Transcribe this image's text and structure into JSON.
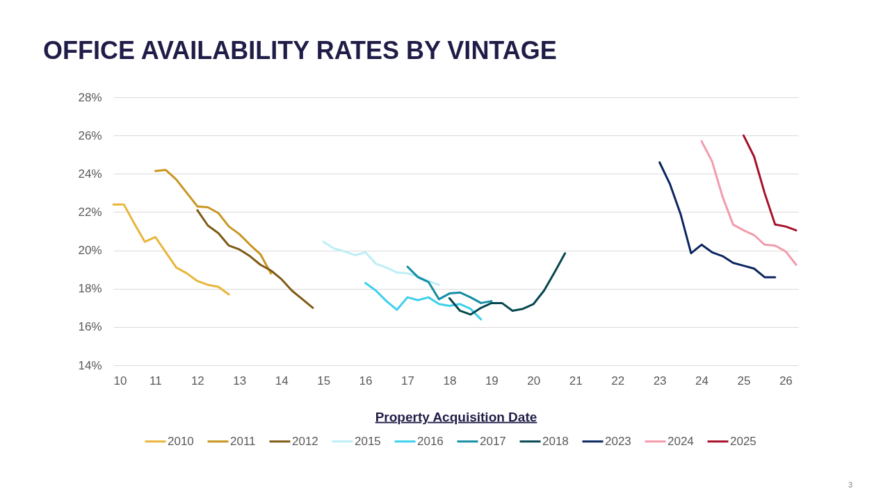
{
  "chart_data": {
    "type": "line",
    "title": "OFFICE AVAILABILITY RATES BY VINTAGE",
    "xlabel": "Property Acquisition Date",
    "annotations": [
      "3"
    ],
    "xlim": [
      10,
      26.3
    ],
    "xticks": [
      10,
      11,
      12,
      13,
      14,
      15,
      16,
      17,
      18,
      19,
      20,
      21,
      22,
      23,
      24,
      25,
      26
    ],
    "ylim": [
      14,
      28
    ],
    "yticks": [
      {
        "value": 14,
        "label": "14%"
      },
      {
        "value": 16,
        "label": "16%"
      },
      {
        "value": 18,
        "label": "18%"
      },
      {
        "value": 20,
        "label": "20%"
      },
      {
        "value": 22,
        "label": "22%"
      },
      {
        "value": 24,
        "label": "24%"
      },
      {
        "value": 26,
        "label": "26%"
      },
      {
        "value": 28,
        "label": "28%"
      }
    ],
    "grid": "y",
    "legend": "bottom",
    "line_style": "solid",
    "series": [
      {
        "name": "2010",
        "color": "#e8b63a",
        "x": [
          10,
          10.25,
          10.5,
          10.75,
          11,
          11.25,
          11.5,
          11.75,
          12,
          12.25,
          12.5,
          12.75
        ],
        "values": [
          22.4,
          22.4,
          21.4,
          20.45,
          20.7,
          19.9,
          19.1,
          18.8,
          18.4,
          18.2,
          18.1,
          17.7
        ]
      },
      {
        "name": "2011",
        "color": "#c8951e",
        "x": [
          11,
          11.25,
          11.5,
          11.75,
          12,
          12.25,
          12.5,
          12.75,
          13,
          13.25,
          13.5,
          13.75
        ],
        "values": [
          24.15,
          24.2,
          23.7,
          23.0,
          22.3,
          22.25,
          21.95,
          21.25,
          20.85,
          20.3,
          19.8,
          18.8
        ]
      },
      {
        "name": "2012",
        "color": "#7f5a14",
        "x": [
          12,
          12.25,
          12.5,
          12.75,
          13,
          13.25,
          13.5,
          13.75,
          14,
          14.25,
          14.5,
          14.75
        ],
        "values": [
          22.1,
          21.3,
          20.9,
          20.25,
          20.05,
          19.7,
          19.25,
          18.95,
          18.5,
          17.9,
          17.45,
          17.0
        ]
      },
      {
        "name": "2015",
        "color": "#bdeef7",
        "x": [
          15,
          15.25,
          15.5,
          15.75,
          16,
          16.25,
          16.5,
          16.75,
          17,
          17.25,
          17.5,
          17.75
        ],
        "values": [
          20.45,
          20.1,
          19.95,
          19.75,
          19.9,
          19.3,
          19.1,
          18.85,
          18.8,
          18.65,
          18.4,
          18.2
        ]
      },
      {
        "name": "2016",
        "color": "#3dd0ec",
        "x": [
          16,
          16.25,
          16.5,
          16.75,
          17,
          17.25,
          17.5,
          17.75,
          18,
          18.25,
          18.5,
          18.75
        ],
        "values": [
          18.3,
          17.9,
          17.35,
          16.9,
          17.55,
          17.4,
          17.55,
          17.2,
          17.1,
          17.2,
          16.95,
          16.4
        ]
      },
      {
        "name": "2017",
        "color": "#138ea3",
        "x": [
          17,
          17.25,
          17.5,
          17.75,
          18,
          18.25,
          18.5,
          18.75,
          19
        ],
        "values": [
          19.15,
          18.6,
          18.35,
          17.45,
          17.75,
          17.8,
          17.55,
          17.25,
          17.35
        ]
      },
      {
        "name": "2018",
        "color": "#06474f",
        "x": [
          18,
          18.25,
          18.5,
          18.75,
          19,
          19.25,
          19.5,
          19.75,
          20,
          20.25,
          20.5,
          20.75
        ],
        "values": [
          17.5,
          16.85,
          16.65,
          17.0,
          17.25,
          17.25,
          16.85,
          16.95,
          17.2,
          17.9,
          18.85,
          19.85
        ]
      },
      {
        "name": "2023",
        "color": "#0b2560",
        "x": [
          23,
          23.25,
          23.5,
          23.75,
          24,
          24.25,
          24.5,
          24.75,
          25,
          25.25,
          25.5,
          25.75
        ],
        "values": [
          24.6,
          23.45,
          21.9,
          19.85,
          20.3,
          19.9,
          19.7,
          19.35,
          19.2,
          19.05,
          18.6,
          18.6
        ]
      },
      {
        "name": "2024",
        "color": "#f29bac",
        "x": [
          24,
          24.25,
          24.5,
          24.75,
          25,
          25.25,
          25.5,
          25.75,
          26,
          26.25
        ],
        "values": [
          25.7,
          24.65,
          22.8,
          21.35,
          21.05,
          20.8,
          20.3,
          20.25,
          19.95,
          19.25
        ]
      },
      {
        "name": "2025",
        "color": "#a5102a",
        "x": [
          25,
          25.25,
          25.5,
          25.75,
          26,
          26.25
        ],
        "values": [
          26.0,
          24.9,
          23.0,
          21.35,
          21.25,
          21.05
        ]
      }
    ]
  }
}
